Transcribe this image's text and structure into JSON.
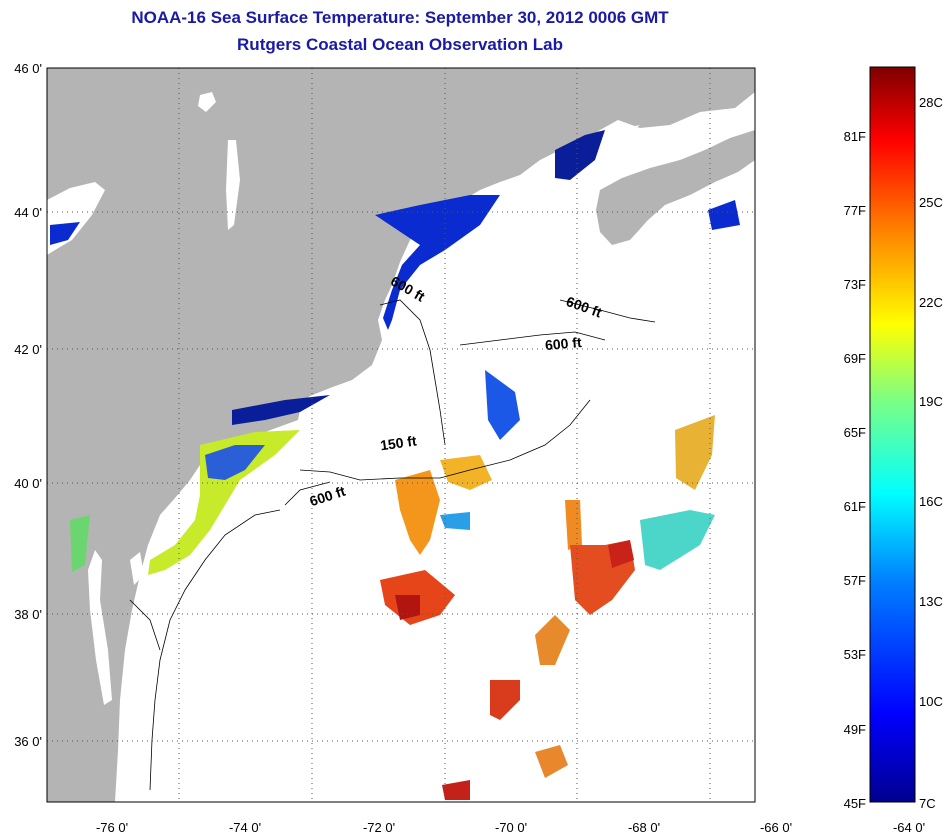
{
  "header": {
    "title": "NOAA-16 Sea Surface Temperature:  September 30, 2012 0006 GMT",
    "subtitle": "Rutgers Coastal Ocean Observation Lab"
  },
  "map": {
    "lat_labels": [
      "46 0'",
      "44 0'",
      "42 0'",
      "40 0'",
      "38 0'",
      "36 0'"
    ],
    "lon_labels": [
      "-76 0'",
      "-74 0'",
      "-72 0'",
      "-70 0'",
      "-68 0'",
      "-66 0'",
      "-64 0'"
    ],
    "depth_labels": [
      "600 ft",
      "600 ft",
      "600 ft",
      "150 ft",
      "600 ft"
    ],
    "colors": {
      "land": "#b4b4b4",
      "ocean": "#ffffff",
      "grid": "#555555"
    }
  },
  "colorbar": {
    "fahrenheit": [
      "81F",
      "77F",
      "73F",
      "69F",
      "65F",
      "61F",
      "57F",
      "53F",
      "49F",
      "45F"
    ],
    "celsius": [
      "28C",
      "25C",
      "22C",
      "19C",
      "16C",
      "13C",
      "10C",
      "7C"
    ],
    "gradient": [
      "#00008f",
      "#0000ff",
      "#007fff",
      "#00ffff",
      "#7fff7f",
      "#ffff00",
      "#ff7f00",
      "#ff0000",
      "#7f0000"
    ]
  }
}
